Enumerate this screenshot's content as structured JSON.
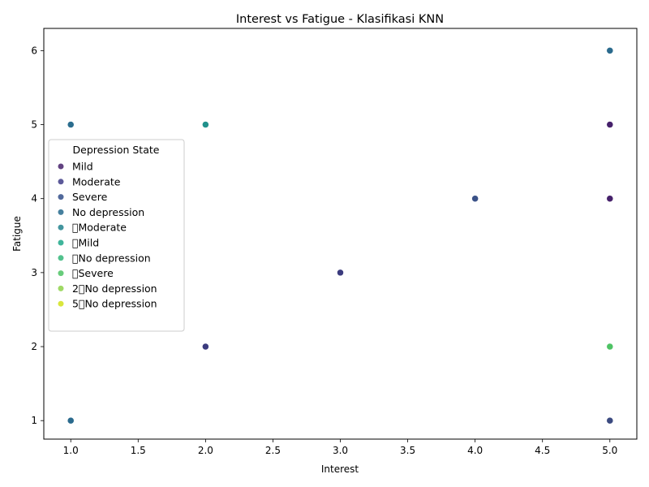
{
  "chart_data": {
    "type": "scatter",
    "title": "Interest vs Fatigue - Klasifikasi KNN",
    "xlabel": "Interest",
    "ylabel": "Fatigue",
    "xlim": [
      0.8,
      5.2
    ],
    "ylim": [
      0.75,
      6.3
    ],
    "xticks": [
      "1.0",
      "1.5",
      "2.0",
      "2.5",
      "3.0",
      "3.5",
      "4.0",
      "4.5",
      "5.0"
    ],
    "xtick_values": [
      1.0,
      1.5,
      2.0,
      2.5,
      3.0,
      3.5,
      4.0,
      4.5,
      5.0
    ],
    "yticks": [
      "1",
      "2",
      "3",
      "4",
      "5",
      "6"
    ],
    "ytick_values": [
      1,
      2,
      3,
      4,
      5,
      6
    ],
    "grid": false,
    "legend": {
      "title": "Depression State",
      "placement": "center-left",
      "entries": [
        {
          "label": "Mild",
          "color": "#46216b"
        },
        {
          "label": "Moderate",
          "color": "#403d87"
        },
        {
          "label": "Severe",
          "color": "#324f8a"
        },
        {
          "label": "No depression",
          "color": "#266a8d"
        },
        {
          "label": "\u0000Moderate",
          "color": "#22838d"
        },
        {
          "label": "\u0000Mild",
          "color": "#1fa88a"
        },
        {
          "label": "\u0000No depression",
          "color": "#34b679"
        },
        {
          "label": "\u0000Severe",
          "color": "#4ec364"
        },
        {
          "label": "2\u0000No depression",
          "color": "#8ed24a"
        },
        {
          "label": "5\u0000No depression",
          "color": "#d2e21b"
        }
      ]
    },
    "points": [
      {
        "x": 1,
        "y": 5,
        "color": "#2b6d8e"
      },
      {
        "x": 1,
        "y": 1,
        "color": "#2a6a8d"
      },
      {
        "x": 2,
        "y": 5,
        "color": "#21918c"
      },
      {
        "x": 2,
        "y": 2,
        "color": "#3b3b7e"
      },
      {
        "x": 3,
        "y": 3,
        "color": "#3b3b7e"
      },
      {
        "x": 4,
        "y": 4,
        "color": "#3b5288"
      },
      {
        "x": 5,
        "y": 6,
        "color": "#2a6a8d"
      },
      {
        "x": 5,
        "y": 5,
        "color": "#46216b"
      },
      {
        "x": 5,
        "y": 4,
        "color": "#46216b"
      },
      {
        "x": 5,
        "y": 2,
        "color": "#4ec364"
      },
      {
        "x": 5,
        "y": 1,
        "color": "#3b4a80"
      }
    ]
  }
}
